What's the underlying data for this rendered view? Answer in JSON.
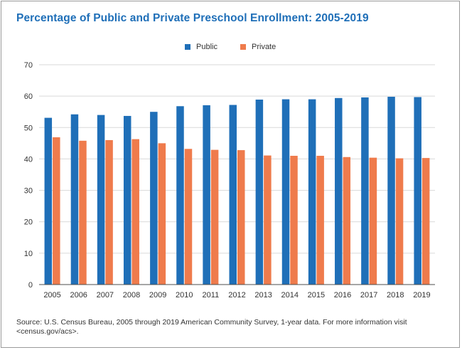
{
  "colors": {
    "public": "#1f6fb8",
    "private": "#ef7b4c",
    "title": "#1f6fb8"
  },
  "source_note": "Source: U.S. Census Bureau, 2005 through 2019 American Community Survey, 1-year data. For more information visit <census.gov/acs>.",
  "chart_data": {
    "type": "bar",
    "title": "Percentage of Public and Private Preschool Enrollment: 2005-2019",
    "xlabel": "",
    "ylabel": "",
    "ylim": [
      0,
      70
    ],
    "yticks": [
      "0",
      "10",
      "20",
      "30",
      "40",
      "50",
      "60",
      "70"
    ],
    "grid": true,
    "legend_position": "top-center",
    "categories": [
      "2005",
      "2006",
      "2007",
      "2008",
      "2009",
      "2010",
      "2011",
      "2012",
      "2013",
      "2014",
      "2015",
      "2016",
      "2017",
      "2018",
      "2019"
    ],
    "series": [
      {
        "name": "Public",
        "color": "#1f6fb8",
        "values": [
          53.1,
          54.2,
          54.0,
          53.7,
          55.0,
          56.8,
          57.1,
          57.2,
          58.9,
          59.0,
          59.0,
          59.4,
          59.6,
          59.8,
          59.7
        ]
      },
      {
        "name": "Private",
        "color": "#ef7b4c",
        "values": [
          46.9,
          45.8,
          46.0,
          46.3,
          45.0,
          43.2,
          42.9,
          42.8,
          41.1,
          41.0,
          41.0,
          40.6,
          40.4,
          40.2,
          40.3
        ]
      }
    ]
  }
}
